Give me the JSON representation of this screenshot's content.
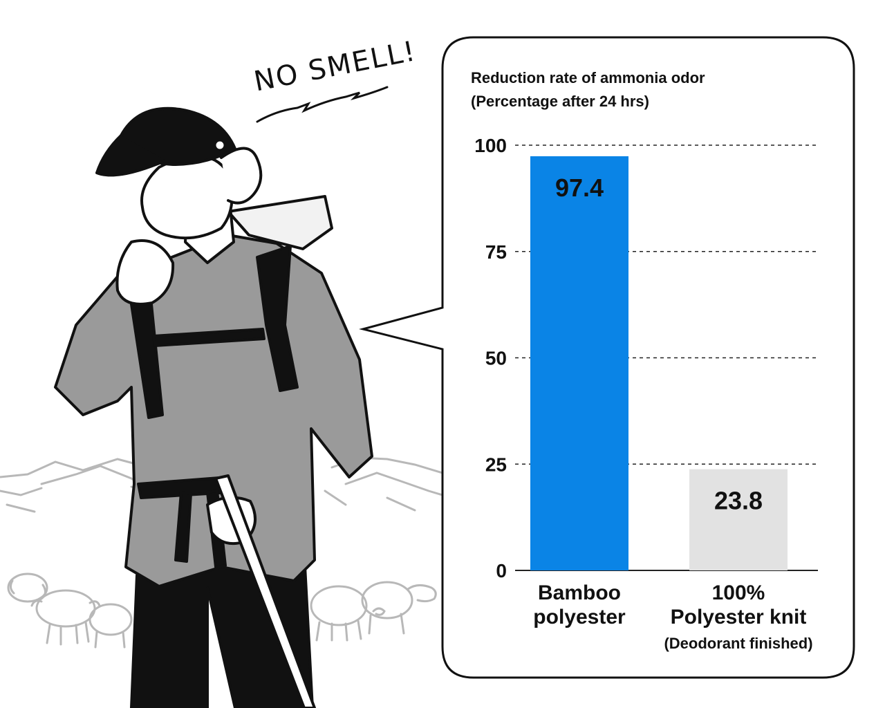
{
  "annotation": {
    "exclamation": "NO SMELL!"
  },
  "colors": {
    "accent": "#0a84e6",
    "secondary": "#e2e2e2",
    "grid": "#222222",
    "ink": "#111111",
    "bubble_border": "#111111",
    "sketch": "#b8b8b8"
  },
  "chart_data": {
    "type": "bar",
    "title": "Reduction rate of ammonia odor",
    "subtitle": "(Percentage after 24 hrs)",
    "ylim": [
      0,
      100
    ],
    "yticks": [
      "0",
      "25",
      "50",
      "75",
      "100"
    ],
    "grid": true,
    "categories": [
      {
        "line1": "Bamboo",
        "line2": "polyester",
        "note": ""
      },
      {
        "line1": "100%",
        "line2": "Polyester knit",
        "note": "(Deodorant finished)"
      }
    ],
    "values": [
      97.4,
      23.8
    ],
    "value_labels": [
      "97.4",
      "23.8"
    ],
    "bar_colors": [
      "#0a84e6",
      "#e2e2e2"
    ]
  }
}
